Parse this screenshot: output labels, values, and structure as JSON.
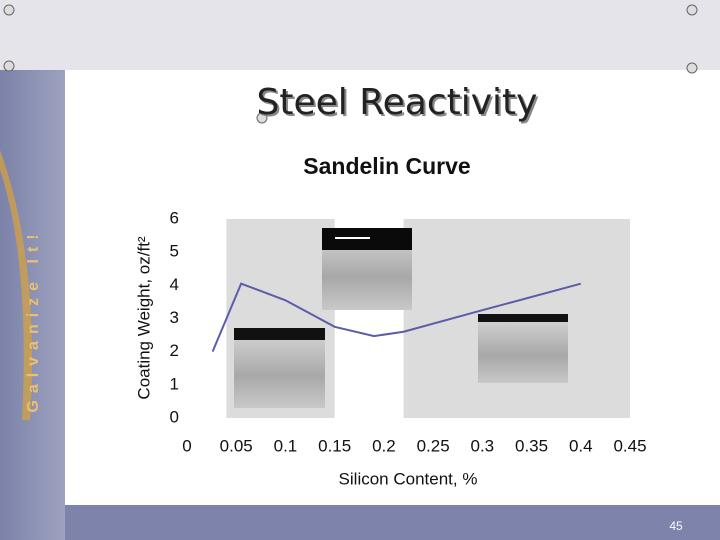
{
  "slide": {
    "title": "Steel Reactivity",
    "side_text": "Galvanize It!",
    "page_number": "45"
  },
  "chart_data": {
    "type": "line",
    "title": "Sandelin Curve",
    "x_label": "Silicon Content, %",
    "y_label": "Coating Weight, oz/ft²",
    "x": [
      0.026,
      0.055,
      0.1,
      0.15,
      0.19,
      0.22,
      0.3,
      0.4
    ],
    "series": [
      {
        "name": "Sandelin curve",
        "color": "#5c5ca8",
        "values": [
          2.0,
          4.05,
          3.55,
          2.75,
          2.47,
          2.6,
          3.25,
          4.05
        ]
      }
    ],
    "shaded_ranges": [
      [
        0.04,
        0.15
      ],
      [
        0.22,
        0.45
      ]
    ],
    "shade_color": "#dcdcdc",
    "xlim": [
      0,
      0.45
    ],
    "xticks": [
      0,
      0.05,
      0.1,
      0.15,
      0.2,
      0.25,
      0.3,
      0.35,
      0.4,
      0.45
    ],
    "ylim": [
      0,
      6
    ],
    "yticks": [
      0,
      1,
      2,
      3,
      4,
      5,
      6
    ],
    "grid": false
  }
}
